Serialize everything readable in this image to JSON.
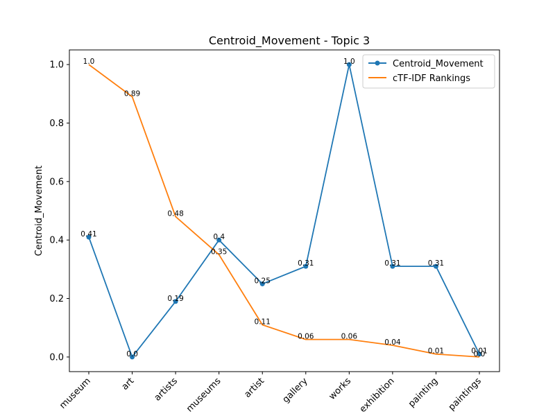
{
  "chart_data": {
    "type": "line",
    "title": "Centroid_Movement - Topic 3",
    "xlabel": "",
    "ylabel": "Centroid_Movement",
    "categories": [
      "museum",
      "art",
      "artists",
      "museums",
      "artist",
      "gallery",
      "works",
      "exhibition",
      "painting",
      "paintings"
    ],
    "ylim": [
      -0.05,
      1.05
    ],
    "yticks": [
      "0.0",
      "0.2",
      "0.4",
      "0.6",
      "0.8",
      "1.0"
    ],
    "legend_position": "top-right",
    "grid": false,
    "series": [
      {
        "name": "Centroid_Movement",
        "color": "#1f77b4",
        "marker": "circle",
        "values": [
          0.41,
          0.0,
          0.19,
          0.4,
          0.25,
          0.31,
          1.0,
          0.31,
          0.31,
          0.01
        ],
        "labels": [
          "0.41",
          "0.0",
          "0.19",
          "0.4",
          "0.25",
          "0.31",
          "1.0",
          "0.31",
          "0.31",
          "0.01"
        ]
      },
      {
        "name": "cTF-IDF Rankings",
        "color": "#ff7f0e",
        "marker": "none",
        "values": [
          1.0,
          0.89,
          0.48,
          0.35,
          0.11,
          0.06,
          0.06,
          0.04,
          0.01,
          0.0
        ],
        "labels": [
          "1.0",
          "0.89",
          "0.48",
          "0.35",
          "0.11",
          "0.06",
          "0.06",
          "0.04",
          "0.01",
          "0.0"
        ]
      }
    ]
  }
}
